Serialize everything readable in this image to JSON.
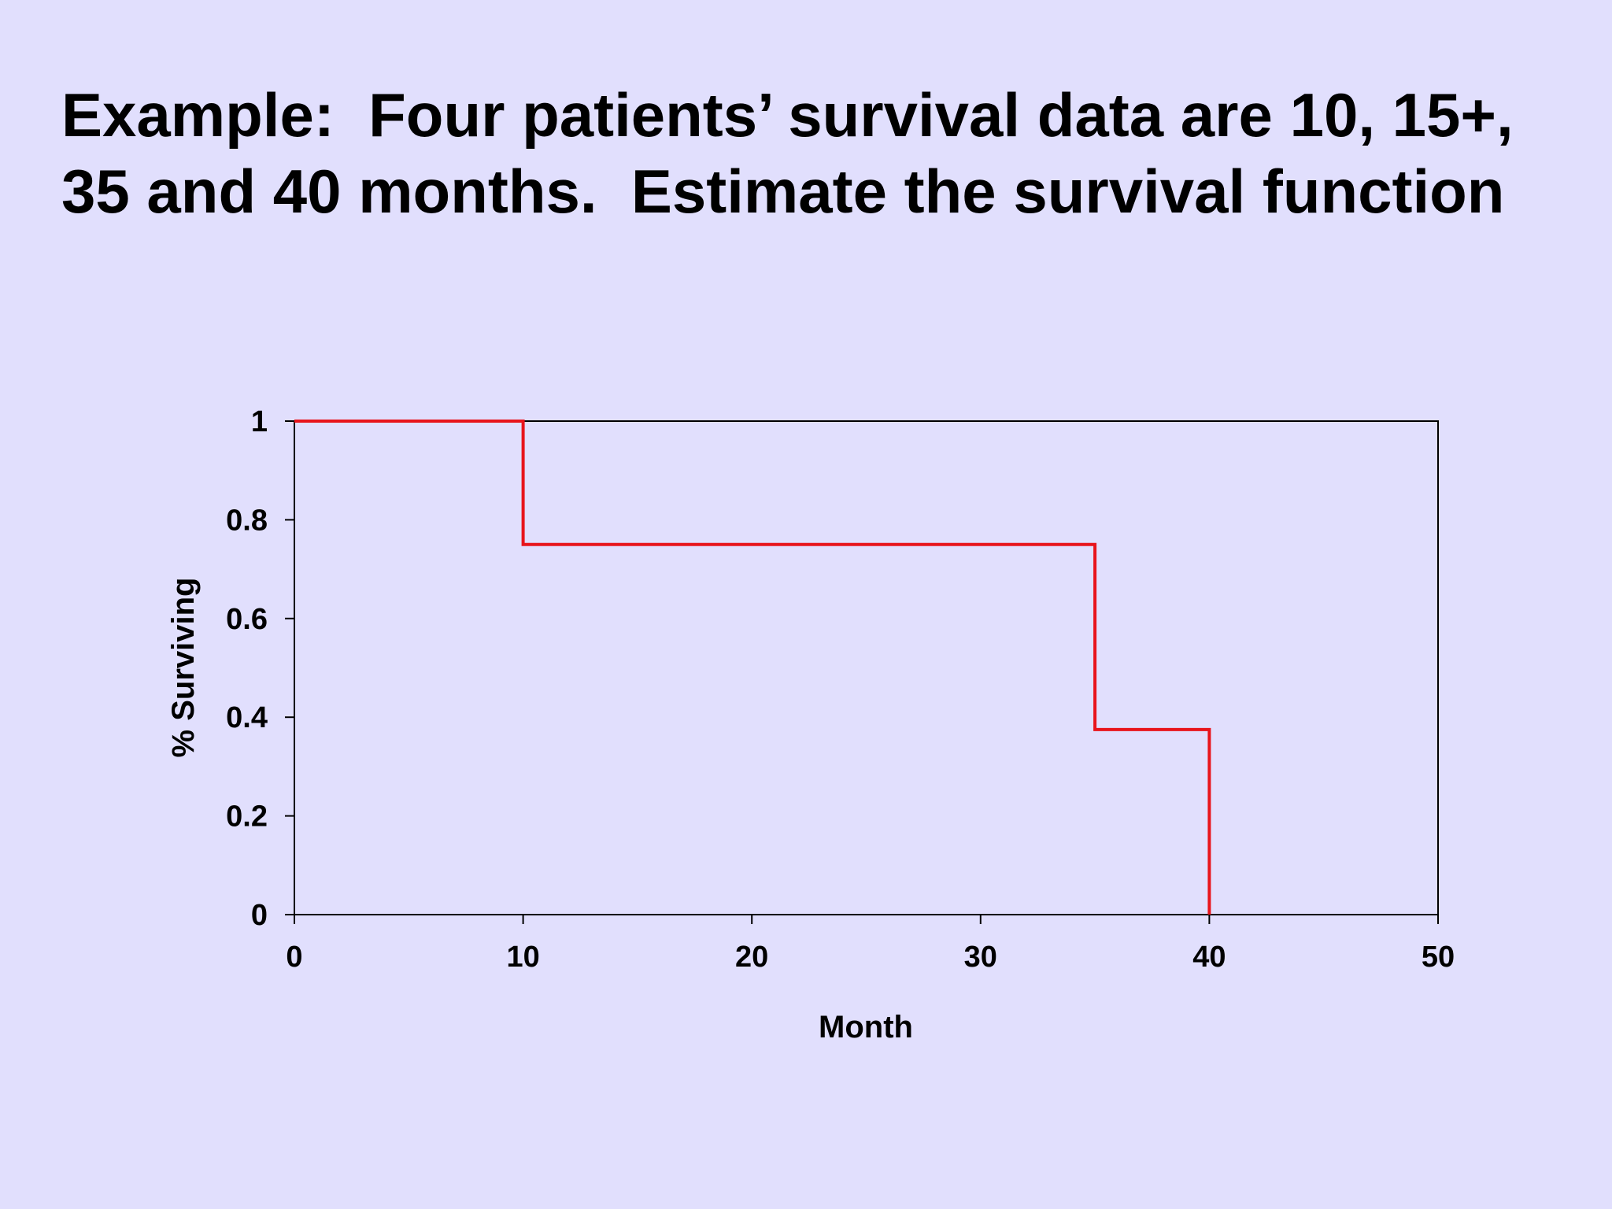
{
  "slide": {
    "title_line1": "Example:  Four patients’ survival data are 10, 15+,",
    "title_line2": "35 and 40 months.  Estimate the survival function",
    "background": "#e1dffd"
  },
  "chart_data": {
    "type": "line",
    "step": true,
    "title": "",
    "xlabel": "Month",
    "ylabel": "% Surviving",
    "xlim": [
      0,
      50
    ],
    "ylim": [
      0,
      1
    ],
    "xticks": [
      0,
      10,
      20,
      30,
      40,
      50
    ],
    "xtick_labels": [
      "0",
      "10",
      "20",
      "30",
      "40",
      "50"
    ],
    "yticks": [
      0,
      0.2,
      0.4,
      0.6,
      0.8,
      1
    ],
    "ytick_labels": [
      "0",
      "0.2",
      "0.4",
      "0.6",
      "0.8",
      "1"
    ],
    "grid": false,
    "legend": "none",
    "series": [
      {
        "color": "#e8141b",
        "x": [
          0,
          10,
          10,
          35,
          35,
          40,
          40
        ],
        "y": [
          1,
          1,
          0.75,
          0.75,
          0.375,
          0.375,
          0
        ]
      }
    ]
  }
}
